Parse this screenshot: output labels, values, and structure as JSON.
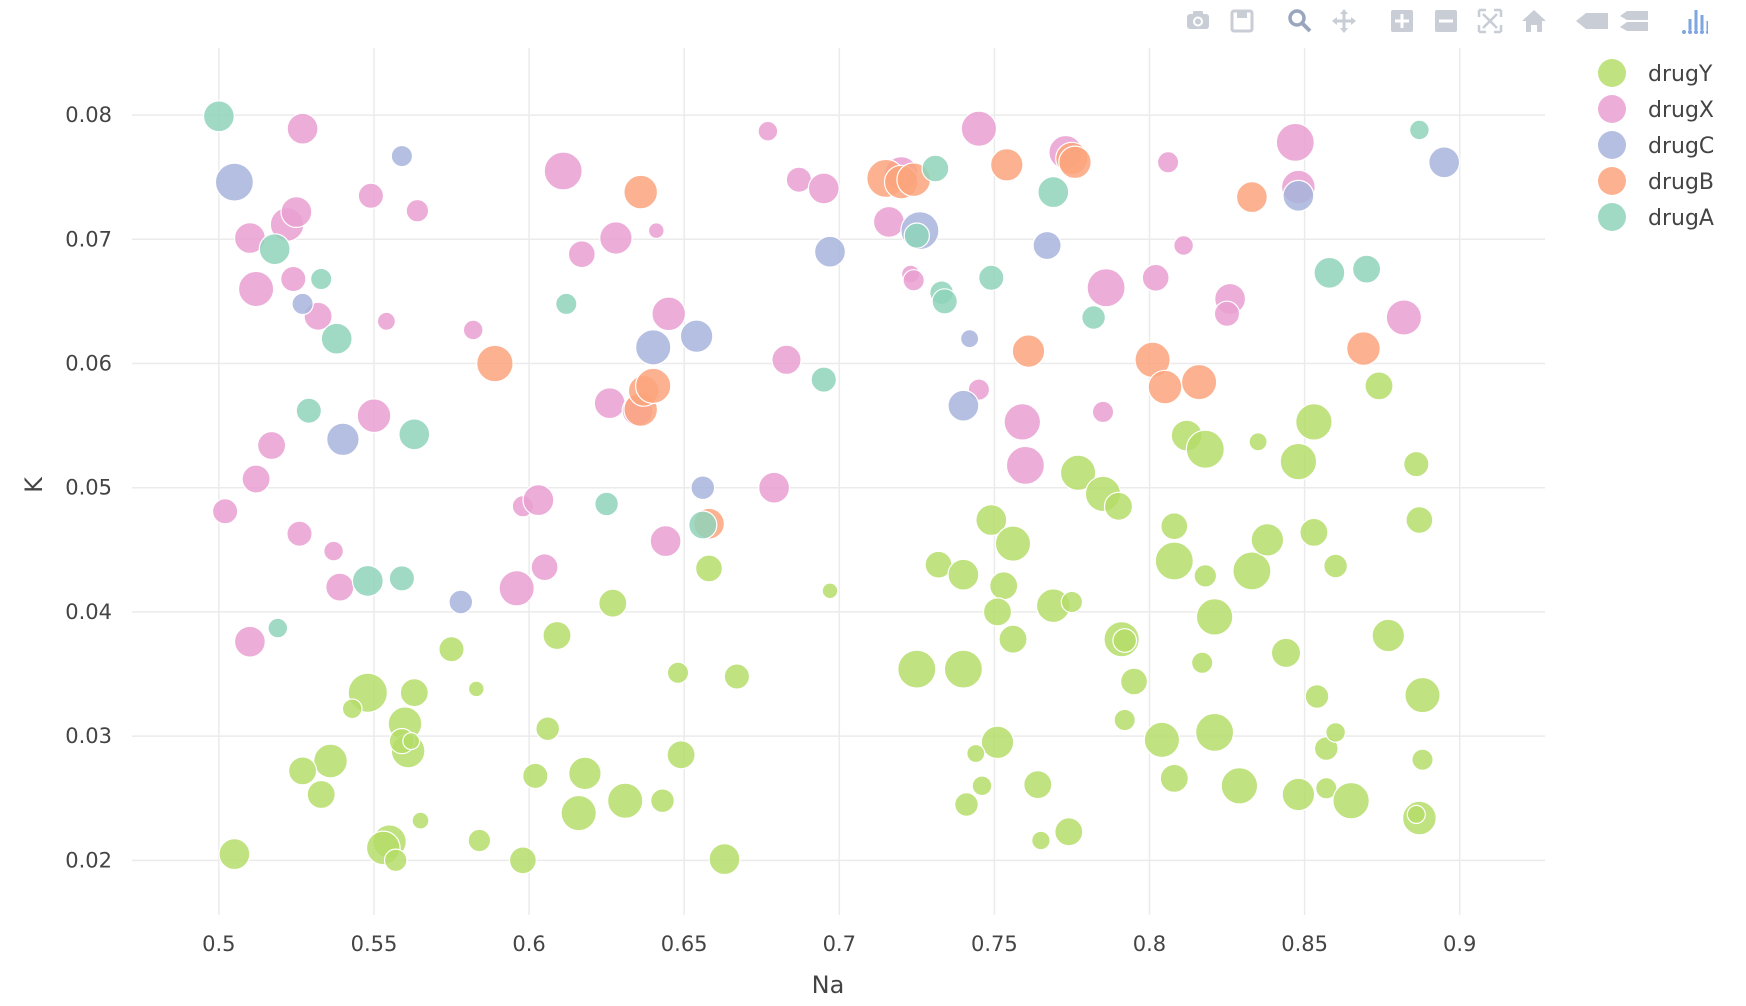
{
  "modebar": {
    "buttons": [
      {
        "name": "camera-icon",
        "group": 0
      },
      {
        "name": "save-icon",
        "group": 0
      },
      {
        "name": "zoom-icon",
        "group": 1
      },
      {
        "name": "pan-icon",
        "group": 1
      },
      {
        "name": "zoom-in-icon",
        "group": 2
      },
      {
        "name": "zoom-out-icon",
        "group": 2
      },
      {
        "name": "autoscale-icon",
        "group": 2
      },
      {
        "name": "home-icon",
        "group": 2
      },
      {
        "name": "spike-lines-icon",
        "group": 3
      },
      {
        "name": "compare-hover-icon",
        "group": 3
      },
      {
        "name": "plotly-logo-icon",
        "group": 4
      }
    ]
  },
  "chart_data": {
    "type": "scatter",
    "xlabel": "Na",
    "ylabel": "K",
    "xlim": [
      0.472,
      0.9275
    ],
    "ylim": [
      0.0156,
      0.0854
    ],
    "xticks": [
      0.5,
      0.55,
      0.6,
      0.65,
      0.7,
      0.75,
      0.8,
      0.85,
      0.9
    ],
    "xtick_labels": [
      "0.5",
      "0.55",
      "0.6",
      "0.65",
      "0.7",
      "0.75",
      "0.8",
      "0.85",
      "0.9"
    ],
    "yticks": [
      0.02,
      0.03,
      0.04,
      0.05,
      0.06,
      0.07,
      0.08
    ],
    "ytick_labels": [
      "0.02",
      "0.03",
      "0.04",
      "0.05",
      "0.06",
      "0.07",
      "0.08"
    ],
    "grid": true,
    "legend_position": "top-right",
    "size_note": "bubble size proportional to relative magnitude s (1 = largest)",
    "series": [
      {
        "name": "drugY",
        "color": "#b5dd6a",
        "points": [
          [
            0.505,
            0.0205,
            0.55
          ],
          [
            0.548,
            0.0335,
            0.7
          ],
          [
            0.555,
            0.0215,
            0.6
          ],
          [
            0.553,
            0.021,
            0.6
          ],
          [
            0.557,
            0.02,
            0.4
          ],
          [
            0.56,
            0.031,
            0.6
          ],
          [
            0.561,
            0.0288,
            0.6
          ],
          [
            0.559,
            0.0296,
            0.45
          ],
          [
            0.562,
            0.0296,
            0.3
          ],
          [
            0.563,
            0.0335,
            0.5
          ],
          [
            0.565,
            0.0232,
            0.3
          ],
          [
            0.543,
            0.0322,
            0.35
          ],
          [
            0.536,
            0.028,
            0.6
          ],
          [
            0.527,
            0.0272,
            0.5
          ],
          [
            0.533,
            0.0253,
            0.5
          ],
          [
            0.575,
            0.037,
            0.45
          ],
          [
            0.583,
            0.0338,
            0.28
          ],
          [
            0.584,
            0.0216,
            0.4
          ],
          [
            0.598,
            0.02,
            0.48
          ],
          [
            0.602,
            0.0268,
            0.45
          ],
          [
            0.606,
            0.0306,
            0.42
          ],
          [
            0.609,
            0.0381,
            0.5
          ],
          [
            0.616,
            0.0238,
            0.63
          ],
          [
            0.618,
            0.027,
            0.58
          ],
          [
            0.627,
            0.0407,
            0.5
          ],
          [
            0.631,
            0.0248,
            0.63
          ],
          [
            0.643,
            0.0248,
            0.42
          ],
          [
            0.648,
            0.0351,
            0.38
          ],
          [
            0.649,
            0.0285,
            0.5
          ],
          [
            0.658,
            0.0435,
            0.48
          ],
          [
            0.663,
            0.0201,
            0.55
          ],
          [
            0.667,
            0.0348,
            0.45
          ],
          [
            0.697,
            0.0417,
            0.28
          ],
          [
            0.725,
            0.0354,
            0.68
          ],
          [
            0.74,
            0.0354,
            0.68
          ],
          [
            0.732,
            0.0438,
            0.48
          ],
          [
            0.74,
            0.043,
            0.55
          ],
          [
            0.749,
            0.0474,
            0.55
          ],
          [
            0.751,
            0.0295,
            0.58
          ],
          [
            0.753,
            0.0421,
            0.5
          ],
          [
            0.751,
            0.04,
            0.5
          ],
          [
            0.756,
            0.0455,
            0.63
          ],
          [
            0.756,
            0.0378,
            0.5
          ],
          [
            0.741,
            0.0245,
            0.42
          ],
          [
            0.744,
            0.0286,
            0.32
          ],
          [
            0.746,
            0.026,
            0.35
          ],
          [
            0.764,
            0.0261,
            0.5
          ],
          [
            0.765,
            0.0216,
            0.33
          ],
          [
            0.769,
            0.0405,
            0.6
          ],
          [
            0.774,
            0.0223,
            0.5
          ],
          [
            0.775,
            0.0408,
            0.38
          ],
          [
            0.777,
            0.0512,
            0.63
          ],
          [
            0.785,
            0.0495,
            0.63
          ],
          [
            0.79,
            0.0485,
            0.5
          ],
          [
            0.791,
            0.0378,
            0.63
          ],
          [
            0.792,
            0.0377,
            0.42
          ],
          [
            0.792,
            0.0313,
            0.38
          ],
          [
            0.795,
            0.0344,
            0.48
          ],
          [
            0.804,
            0.0297,
            0.63
          ],
          [
            0.808,
            0.0266,
            0.5
          ],
          [
            0.808,
            0.0469,
            0.48
          ],
          [
            0.808,
            0.0441,
            0.68
          ],
          [
            0.812,
            0.0542,
            0.55
          ],
          [
            0.818,
            0.0531,
            0.68
          ],
          [
            0.818,
            0.0429,
            0.4
          ],
          [
            0.817,
            0.0359,
            0.38
          ],
          [
            0.821,
            0.0396,
            0.65
          ],
          [
            0.821,
            0.0303,
            0.68
          ],
          [
            0.829,
            0.026,
            0.65
          ],
          [
            0.833,
            0.0433,
            0.68
          ],
          [
            0.835,
            0.0537,
            0.32
          ],
          [
            0.838,
            0.0458,
            0.58
          ],
          [
            0.844,
            0.0367,
            0.52
          ],
          [
            0.848,
            0.0253,
            0.58
          ],
          [
            0.848,
            0.0521,
            0.65
          ],
          [
            0.853,
            0.0553,
            0.65
          ],
          [
            0.853,
            0.0464,
            0.5
          ],
          [
            0.854,
            0.0332,
            0.42
          ],
          [
            0.857,
            0.029,
            0.42
          ],
          [
            0.857,
            0.0258,
            0.38
          ],
          [
            0.86,
            0.0437,
            0.42
          ],
          [
            0.86,
            0.0303,
            0.35
          ],
          [
            0.865,
            0.0248,
            0.65
          ],
          [
            0.874,
            0.0582,
            0.5
          ],
          [
            0.877,
            0.0381,
            0.58
          ],
          [
            0.887,
            0.0234,
            0.6
          ],
          [
            0.886,
            0.0237,
            0.32
          ],
          [
            0.886,
            0.0519,
            0.45
          ],
          [
            0.887,
            0.0474,
            0.48
          ],
          [
            0.888,
            0.0281,
            0.38
          ],
          [
            0.888,
            0.0333,
            0.63
          ]
        ]
      },
      {
        "name": "drugX",
        "color": "#e9a0d1",
        "points": [
          [
            0.502,
            0.0481,
            0.45
          ],
          [
            0.51,
            0.0701,
            0.55
          ],
          [
            0.512,
            0.066,
            0.63
          ],
          [
            0.51,
            0.0376,
            0.55
          ],
          [
            0.512,
            0.0507,
            0.5
          ],
          [
            0.517,
            0.0534,
            0.5
          ],
          [
            0.522,
            0.0712,
            0.6
          ],
          [
            0.525,
            0.0722,
            0.55
          ],
          [
            0.524,
            0.0668,
            0.45
          ],
          [
            0.527,
            0.0789,
            0.55
          ],
          [
            0.526,
            0.0463,
            0.45
          ],
          [
            0.532,
            0.0638,
            0.5
          ],
          [
            0.537,
            0.0449,
            0.35
          ],
          [
            0.539,
            0.042,
            0.5
          ],
          [
            0.549,
            0.0735,
            0.45
          ],
          [
            0.55,
            0.0558,
            0.6
          ],
          [
            0.554,
            0.0634,
            0.32
          ],
          [
            0.564,
            0.0723,
            0.4
          ],
          [
            0.582,
            0.0627,
            0.35
          ],
          [
            0.596,
            0.0419,
            0.63
          ],
          [
            0.598,
            0.0485,
            0.38
          ],
          [
            0.603,
            0.049,
            0.55
          ],
          [
            0.605,
            0.0436,
            0.48
          ],
          [
            0.611,
            0.0755,
            0.68
          ],
          [
            0.617,
            0.0688,
            0.48
          ],
          [
            0.626,
            0.0568,
            0.55
          ],
          [
            0.628,
            0.0701,
            0.58
          ],
          [
            0.635,
            0.0562,
            0.55
          ],
          [
            0.641,
            0.0707,
            0.28
          ],
          [
            0.644,
            0.0457,
            0.55
          ],
          [
            0.645,
            0.064,
            0.6
          ],
          [
            0.677,
            0.0787,
            0.35
          ],
          [
            0.679,
            0.05,
            0.55
          ],
          [
            0.683,
            0.0603,
            0.52
          ],
          [
            0.687,
            0.0748,
            0.45
          ],
          [
            0.695,
            0.0741,
            0.55
          ],
          [
            0.716,
            0.0714,
            0.55
          ],
          [
            0.72,
            0.0753,
            0.6
          ],
          [
            0.723,
            0.0672,
            0.32
          ],
          [
            0.724,
            0.0667,
            0.38
          ],
          [
            0.745,
            0.0789,
            0.63
          ],
          [
            0.745,
            0.0579,
            0.38
          ],
          [
            0.759,
            0.0553,
            0.65
          ],
          [
            0.76,
            0.0518,
            0.68
          ],
          [
            0.773,
            0.077,
            0.6
          ],
          [
            0.785,
            0.0561,
            0.38
          ],
          [
            0.786,
            0.0661,
            0.68
          ],
          [
            0.802,
            0.0669,
            0.48
          ],
          [
            0.806,
            0.0762,
            0.38
          ],
          [
            0.811,
            0.0695,
            0.35
          ],
          [
            0.826,
            0.0652,
            0.55
          ],
          [
            0.825,
            0.064,
            0.45
          ],
          [
            0.847,
            0.0778,
            0.68
          ],
          [
            0.848,
            0.0742,
            0.6
          ],
          [
            0.882,
            0.0637,
            0.63
          ]
        ]
      },
      {
        "name": "drugC",
        "color": "#a8b4dc",
        "points": [
          [
            0.505,
            0.0746,
            0.68
          ],
          [
            0.527,
            0.0648,
            0.38
          ],
          [
            0.559,
            0.0767,
            0.38
          ],
          [
            0.54,
            0.0539,
            0.58
          ],
          [
            0.578,
            0.0408,
            0.42
          ],
          [
            0.64,
            0.0613,
            0.63
          ],
          [
            0.654,
            0.0622,
            0.58
          ],
          [
            0.656,
            0.05,
            0.42
          ],
          [
            0.697,
            0.069,
            0.55
          ],
          [
            0.726,
            0.0707,
            0.68
          ],
          [
            0.742,
            0.062,
            0.32
          ],
          [
            0.74,
            0.0566,
            0.55
          ],
          [
            0.767,
            0.0695,
            0.5
          ],
          [
            0.848,
            0.0735,
            0.55
          ],
          [
            0.895,
            0.0762,
            0.55
          ]
        ]
      },
      {
        "name": "drugB",
        "color": "#fba47d",
        "points": [
          [
            0.589,
            0.06,
            0.65
          ],
          [
            0.636,
            0.0738,
            0.6
          ],
          [
            0.636,
            0.0563,
            0.6
          ],
          [
            0.637,
            0.0578,
            0.55
          ],
          [
            0.64,
            0.0582,
            0.63
          ],
          [
            0.658,
            0.0471,
            0.55
          ],
          [
            0.715,
            0.0749,
            0.68
          ],
          [
            0.72,
            0.0746,
            0.6
          ],
          [
            0.724,
            0.0748,
            0.6
          ],
          [
            0.754,
            0.076,
            0.58
          ],
          [
            0.761,
            0.061,
            0.58
          ],
          [
            0.775,
            0.0765,
            0.58
          ],
          [
            0.776,
            0.0762,
            0.58
          ],
          [
            0.801,
            0.0603,
            0.63
          ],
          [
            0.805,
            0.0581,
            0.6
          ],
          [
            0.816,
            0.0585,
            0.63
          ],
          [
            0.833,
            0.0734,
            0.55
          ],
          [
            0.869,
            0.0612,
            0.6
          ]
        ]
      },
      {
        "name": "drugA",
        "color": "#8fd3bb",
        "points": [
          [
            0.5,
            0.0799,
            0.55
          ],
          [
            0.518,
            0.0692,
            0.55
          ],
          [
            0.533,
            0.0668,
            0.38
          ],
          [
            0.538,
            0.062,
            0.55
          ],
          [
            0.529,
            0.0562,
            0.45
          ],
          [
            0.519,
            0.0387,
            0.35
          ],
          [
            0.548,
            0.0425,
            0.55
          ],
          [
            0.559,
            0.0427,
            0.45
          ],
          [
            0.563,
            0.0543,
            0.55
          ],
          [
            0.612,
            0.0648,
            0.38
          ],
          [
            0.625,
            0.0487,
            0.42
          ],
          [
            0.656,
            0.047,
            0.5
          ],
          [
            0.695,
            0.0587,
            0.45
          ],
          [
            0.731,
            0.0757,
            0.48
          ],
          [
            0.725,
            0.0703,
            0.45
          ],
          [
            0.733,
            0.0657,
            0.42
          ],
          [
            0.734,
            0.065,
            0.45
          ],
          [
            0.749,
            0.0669,
            0.45
          ],
          [
            0.769,
            0.0738,
            0.55
          ],
          [
            0.782,
            0.0637,
            0.42
          ],
          [
            0.858,
            0.0673,
            0.55
          ],
          [
            0.87,
            0.0676,
            0.5
          ],
          [
            0.887,
            0.0788,
            0.35
          ]
        ]
      }
    ]
  }
}
